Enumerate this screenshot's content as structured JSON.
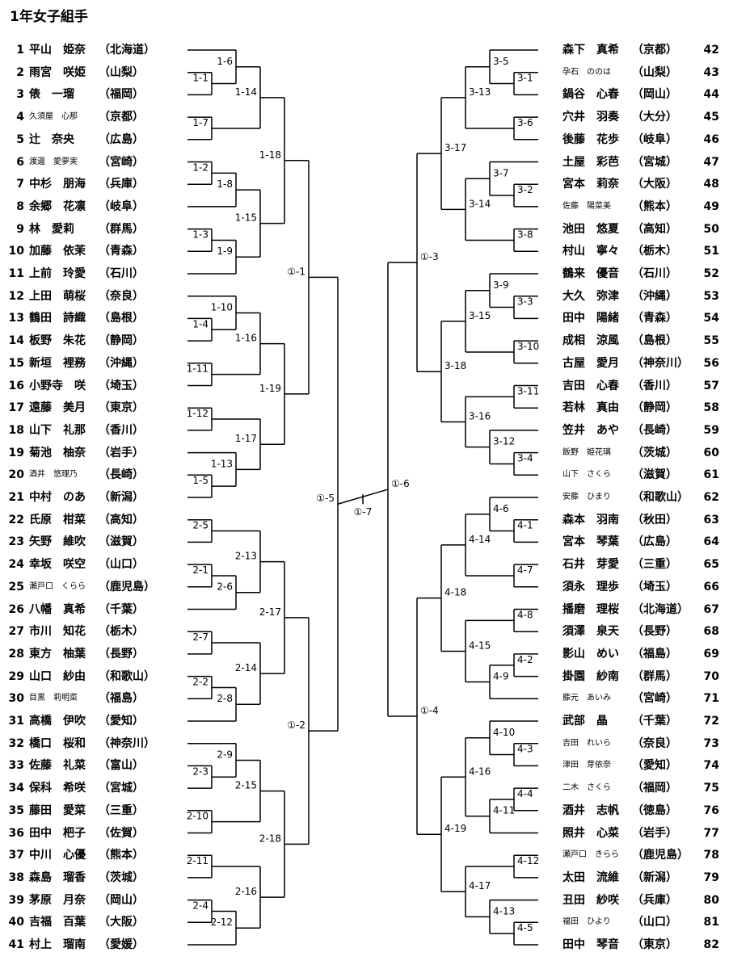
{
  "title": "1年女子組手",
  "left": [
    {
      "no": "1",
      "name": "平山　姫奈",
      "pref": "（北海道）"
    },
    {
      "no": "2",
      "name": "雨宮　咲姫",
      "pref": "（山梨）"
    },
    {
      "no": "3",
      "name": "俵　一瑠",
      "pref": "（福岡）"
    },
    {
      "no": "4",
      "name": "久須屋　心那",
      "pref": "（京都）",
      "small": true
    },
    {
      "no": "5",
      "name": "辻　奈央",
      "pref": "（広島）"
    },
    {
      "no": "6",
      "name": "渡邊　愛夢実",
      "pref": "（宮崎）",
      "small": true
    },
    {
      "no": "7",
      "name": "中杉　朋海",
      "pref": "（兵庫）"
    },
    {
      "no": "8",
      "name": "余郷　花凛",
      "pref": "（岐阜）"
    },
    {
      "no": "9",
      "name": "林　愛莉",
      "pref": "（群馬）"
    },
    {
      "no": "10",
      "name": "加藤　依茉",
      "pref": "（青森）"
    },
    {
      "no": "11",
      "name": "上前　玲愛",
      "pref": "（石川）"
    },
    {
      "no": "12",
      "name": "上田　萌桜",
      "pref": "（奈良）"
    },
    {
      "no": "13",
      "name": "鶴田　詩織",
      "pref": "（島根）"
    },
    {
      "no": "14",
      "name": "板野　朱花",
      "pref": "（静岡）"
    },
    {
      "no": "15",
      "name": "新垣　裡務",
      "pref": "（沖縄）"
    },
    {
      "no": "16",
      "name": "小野寺　咲",
      "pref": "（埼玉）"
    },
    {
      "no": "17",
      "name": "遠藤　美月",
      "pref": "（東京）"
    },
    {
      "no": "18",
      "name": "山下　礼那",
      "pref": "（香川）"
    },
    {
      "no": "19",
      "name": "菊池　柚奈",
      "pref": "（岩手）"
    },
    {
      "no": "20",
      "name": "酒井　悠理乃",
      "pref": "（長崎）",
      "small": true
    },
    {
      "no": "21",
      "name": "中村　のあ",
      "pref": "（新潟）"
    },
    {
      "no": "22",
      "name": "氏原　柑菜",
      "pref": "（高知）"
    },
    {
      "no": "23",
      "name": "矢野　維吹",
      "pref": "（滋賀）"
    },
    {
      "no": "24",
      "name": "幸坂　咲空",
      "pref": "（山口）"
    },
    {
      "no": "25",
      "name": "瀬戸口　くらら",
      "pref": "（鹿児島）",
      "small": true
    },
    {
      "no": "26",
      "name": "八幡　真希",
      "pref": "（千葉）"
    },
    {
      "no": "27",
      "name": "市川　知花",
      "pref": "（栃木）"
    },
    {
      "no": "28",
      "name": "東方　柚葉",
      "pref": "（長野）"
    },
    {
      "no": "29",
      "name": "山口　紗由",
      "pref": "（和歌山）"
    },
    {
      "no": "30",
      "name": "目黒　莉明菜",
      "pref": "（福島）",
      "small": true
    },
    {
      "no": "31",
      "name": "高橋　伊吹",
      "pref": "（愛知）"
    },
    {
      "no": "32",
      "name": "橋口　桜和",
      "pref": "（神奈川）"
    },
    {
      "no": "33",
      "name": "佐藤　礼菜",
      "pref": "（富山）"
    },
    {
      "no": "34",
      "name": "保科　希咲",
      "pref": "（宮城）"
    },
    {
      "no": "35",
      "name": "藤田　愛菜",
      "pref": "（三重）"
    },
    {
      "no": "36",
      "name": "田中　杷子",
      "pref": "（佐賀）"
    },
    {
      "no": "37",
      "name": "中川　心優",
      "pref": "（熊本）"
    },
    {
      "no": "38",
      "name": "森島　瑠香",
      "pref": "（茨城）"
    },
    {
      "no": "39",
      "name": "茅原　月奈",
      "pref": "（岡山）"
    },
    {
      "no": "40",
      "name": "吉福　百葉",
      "pref": "（大阪）"
    },
    {
      "no": "41",
      "name": "村上　瑠南",
      "pref": "（愛媛）"
    }
  ],
  "right": [
    {
      "no": "42",
      "name": "森下　真希",
      "pref": "（京都）"
    },
    {
      "no": "43",
      "name": "孕石　ののは",
      "pref": "（山梨）",
      "small": true
    },
    {
      "no": "44",
      "name": "鍋谷　心春",
      "pref": "（岡山）"
    },
    {
      "no": "45",
      "name": "穴井　羽奏",
      "pref": "（大分）"
    },
    {
      "no": "46",
      "name": "後藤　花歩",
      "pref": "（岐阜）"
    },
    {
      "no": "47",
      "name": "土屋　彩芭",
      "pref": "（宮城）"
    },
    {
      "no": "48",
      "name": "宮本　莉奈",
      "pref": "（大阪）"
    },
    {
      "no": "49",
      "name": "佐藤　陽菜美",
      "pref": "（熊本）",
      "small": true
    },
    {
      "no": "50",
      "name": "池田　悠夏",
      "pref": "（高知）"
    },
    {
      "no": "51",
      "name": "村山　寧々",
      "pref": "（栃木）"
    },
    {
      "no": "52",
      "name": "鶴来　優音",
      "pref": "（石川）"
    },
    {
      "no": "53",
      "name": "大久　弥津",
      "pref": "（沖縄）"
    },
    {
      "no": "54",
      "name": "田中　陽緒",
      "pref": "（青森）"
    },
    {
      "no": "55",
      "name": "成相　涼風",
      "pref": "（島根）"
    },
    {
      "no": "56",
      "name": "古屋　愛月",
      "pref": "（神奈川）"
    },
    {
      "no": "57",
      "name": "吉田　心春",
      "pref": "（香川）"
    },
    {
      "no": "58",
      "name": "若林　真由",
      "pref": "（静岡）"
    },
    {
      "no": "59",
      "name": "笠井　あや",
      "pref": "（長崎）"
    },
    {
      "no": "60",
      "name": "飯野　姫花璃",
      "pref": "（茨城）",
      "small": true
    },
    {
      "no": "61",
      "name": "山下　さくら",
      "pref": "（滋賀）",
      "small": true
    },
    {
      "no": "62",
      "name": "安藤　ひまり",
      "pref": "（和歌山）",
      "small": true
    },
    {
      "no": "63",
      "name": "森本　羽南",
      "pref": "（秋田）"
    },
    {
      "no": "64",
      "name": "宮本　琴葉",
      "pref": "（広島）"
    },
    {
      "no": "65",
      "name": "石井　芽愛",
      "pref": "（三重）"
    },
    {
      "no": "66",
      "name": "須永　理歩",
      "pref": "（埼玉）"
    },
    {
      "no": "67",
      "name": "播磨　理桜",
      "pref": "（北海道）"
    },
    {
      "no": "68",
      "name": "須澤　泉天",
      "pref": "（長野）"
    },
    {
      "no": "69",
      "name": "影山　めい",
      "pref": "（福島）"
    },
    {
      "no": "70",
      "name": "掛園　紗南",
      "pref": "（群馬）"
    },
    {
      "no": "71",
      "name": "藤元　あいみ",
      "pref": "（宮崎）",
      "small": true
    },
    {
      "no": "72",
      "name": "武部　晶",
      "pref": "（千葉）"
    },
    {
      "no": "73",
      "name": "吉田　れいら",
      "pref": "（奈良）",
      "small": true
    },
    {
      "no": "74",
      "name": "津田　芽依奈",
      "pref": "（愛知）",
      "small": true
    },
    {
      "no": "75",
      "name": "二木　さくら",
      "pref": "（福岡）",
      "small": true
    },
    {
      "no": "76",
      "name": "酒井　志帆",
      "pref": "（徳島）"
    },
    {
      "no": "77",
      "name": "照井　心菜",
      "pref": "（岩手）"
    },
    {
      "no": "78",
      "name": "瀬戸口　きらら",
      "pref": "（鹿児島）",
      "small": true
    },
    {
      "no": "79",
      "name": "太田　流維",
      "pref": "（新潟）"
    },
    {
      "no": "80",
      "name": "丑田　紗咲",
      "pref": "（兵庫）"
    },
    {
      "no": "81",
      "name": "福田　ひより",
      "pref": "（山口）",
      "small": true
    },
    {
      "no": "82",
      "name": "田中　琴音",
      "pref": "（東京）"
    }
  ],
  "matches": {
    "L": [
      {
        "t": [
          1,
          2
        ],
        "label": "1-1"
      },
      {
        "t": [
          0,
          "1-1"
        ],
        "label": "1-6"
      },
      {
        "t": [
          3,
          4
        ],
        "label": "1-7"
      },
      {
        "t": [
          "1-6",
          "1-7"
        ],
        "label": "1-14"
      },
      {
        "t": [
          5,
          6
        ],
        "label": "1-2"
      },
      {
        "t": [
          7,
          "1-2"
        ],
        "label": "1-8"
      },
      {
        "t": [
          8,
          9
        ],
        "label": "1-3"
      },
      {
        "t": [
          "1-3",
          10
        ],
        "label": "1-9"
      },
      {
        "t": [
          "1-8",
          "1-9"
        ],
        "label": "1-15"
      },
      {
        "t": [
          "1-14",
          "1-15"
        ],
        "label": "1-18"
      },
      {
        "t": [
          12,
          13
        ],
        "label": "1-4"
      },
      {
        "t": [
          11,
          "1-4"
        ],
        "label": "1-10"
      },
      {
        "t": [
          14,
          15
        ],
        "label": "1-11"
      },
      {
        "t": [
          "1-10",
          "1-11"
        ],
        "label": "1-16"
      },
      {
        "t": [
          16,
          17
        ],
        "label": "1-12"
      },
      {
        "t": [
          19,
          20
        ],
        "label": "1-5"
      },
      {
        "t": [
          18,
          "1-5"
        ],
        "label": "1-13"
      },
      {
        "t": [
          "1-12",
          "1-13"
        ],
        "label": "1-17"
      },
      {
        "t": [
          "1-16",
          "1-17"
        ],
        "label": "1-19"
      },
      {
        "t": [
          "1-18",
          "1-19"
        ],
        "label": "①-1"
      },
      {
        "t": [
          23,
          24
        ],
        "label": "2-1"
      },
      {
        "t": [
          21,
          22
        ],
        "label": "2-5"
      },
      {
        "t": [
          "2-1",
          25
        ],
        "label": "2-6"
      },
      {
        "t": [
          "2-5",
          "2-6"
        ],
        "label": "2-13"
      },
      {
        "t": [
          26,
          27
        ],
        "label": "2-7"
      },
      {
        "t": [
          28,
          29
        ],
        "label": "2-2"
      },
      {
        "t": [
          "2-2",
          30
        ],
        "label": "2-8"
      },
      {
        "t": [
          "2-7",
          "2-8"
        ],
        "label": "2-14"
      },
      {
        "t": [
          "2-13",
          "2-14"
        ],
        "label": "2-17"
      },
      {
        "t": [
          32,
          33
        ],
        "label": "2-3"
      },
      {
        "t": [
          31,
          "2-3"
        ],
        "label": "2-9"
      },
      {
        "t": [
          34,
          35
        ],
        "label": "2-10"
      },
      {
        "t": [
          "2-9",
          "2-10"
        ],
        "label": "2-15"
      },
      {
        "t": [
          36,
          37
        ],
        "label": "2-11"
      },
      {
        "t": [
          38,
          39
        ],
        "label": "2-4"
      },
      {
        "t": [
          "2-4",
          40
        ],
        "label": "2-12"
      },
      {
        "t": [
          "2-11",
          "2-12"
        ],
        "label": "2-16"
      },
      {
        "t": [
          "2-15",
          "2-16"
        ],
        "label": "2-18"
      },
      {
        "t": [
          "2-17",
          "2-18"
        ],
        "label": "①-2"
      },
      {
        "t": [
          "①-1",
          "①-2"
        ],
        "label": "①-5"
      }
    ],
    "R": [
      {
        "t": [
          1,
          2
        ],
        "label": "3-1"
      },
      {
        "t": [
          0,
          "3-1"
        ],
        "label": "3-5"
      },
      {
        "t": [
          3,
          4
        ],
        "label": "3-6"
      },
      {
        "t": [
          "3-5",
          "3-6"
        ],
        "label": "3-13"
      },
      {
        "t": [
          6,
          7
        ],
        "label": "3-2"
      },
      {
        "t": [
          5,
          "3-2"
        ],
        "label": "3-7"
      },
      {
        "t": [
          8,
          9
        ],
        "label": "3-8"
      },
      {
        "t": [
          "3-7",
          "3-8"
        ],
        "label": "3-14"
      },
      {
        "t": [
          "3-13",
          "3-14"
        ],
        "label": "3-17"
      },
      {
        "t": [
          11,
          12
        ],
        "label": "3-3"
      },
      {
        "t": [
          10,
          "3-3"
        ],
        "label": "3-9"
      },
      {
        "t": [
          13,
          14
        ],
        "label": "3-10"
      },
      {
        "t": [
          "3-9",
          "3-10"
        ],
        "label": "3-15"
      },
      {
        "t": [
          15,
          16
        ],
        "label": "3-11"
      },
      {
        "t": [
          18,
          19
        ],
        "label": "3-4"
      },
      {
        "t": [
          17,
          "3-4"
        ],
        "label": "3-12"
      },
      {
        "t": [
          "3-11",
          "3-12"
        ],
        "label": "3-16"
      },
      {
        "t": [
          "3-15",
          "3-16"
        ],
        "label": "3-18"
      },
      {
        "t": [
          "3-17",
          "3-18"
        ],
        "label": "①-3"
      },
      {
        "t": [
          21,
          22
        ],
        "label": "4-1"
      },
      {
        "t": [
          20,
          "4-1"
        ],
        "label": "4-6"
      },
      {
        "t": [
          23,
          24
        ],
        "label": "4-7"
      },
      {
        "t": [
          "4-6",
          "4-7"
        ],
        "label": "4-14"
      },
      {
        "t": [
          25,
          26
        ],
        "label": "4-8"
      },
      {
        "t": [
          27,
          28
        ],
        "label": "4-2"
      },
      {
        "t": [
          "4-2",
          29
        ],
        "label": "4-9"
      },
      {
        "t": [
          "4-8",
          "4-9"
        ],
        "label": "4-15"
      },
      {
        "t": [
          "4-14",
          "4-15"
        ],
        "label": "4-18"
      },
      {
        "t": [
          31,
          32
        ],
        "label": "4-3"
      },
      {
        "t": [
          30,
          "4-3"
        ],
        "label": "4-10"
      },
      {
        "t": [
          33,
          34
        ],
        "label": "4-4"
      },
      {
        "t": [
          "4-4",
          35
        ],
        "label": "4-11"
      },
      {
        "t": [
          "4-10",
          "4-11"
        ],
        "label": "4-16"
      },
      {
        "t": [
          36,
          37
        ],
        "label": "4-12"
      },
      {
        "t": [
          39,
          40
        ],
        "label": "4-5"
      },
      {
        "t": [
          "4-5",
          38
        ],
        "label": "4-13"
      },
      {
        "t": [
          "4-12",
          "4-13"
        ],
        "label": "4-17"
      },
      {
        "t": [
          "4-16",
          "4-17"
        ],
        "label": "4-19"
      },
      {
        "t": [
          "4-18",
          "4-19"
        ],
        "label": "①-4"
      },
      {
        "t": [
          "①-3",
          "①-4"
        ],
        "label": "①-6"
      }
    ],
    "final": "①-7"
  }
}
